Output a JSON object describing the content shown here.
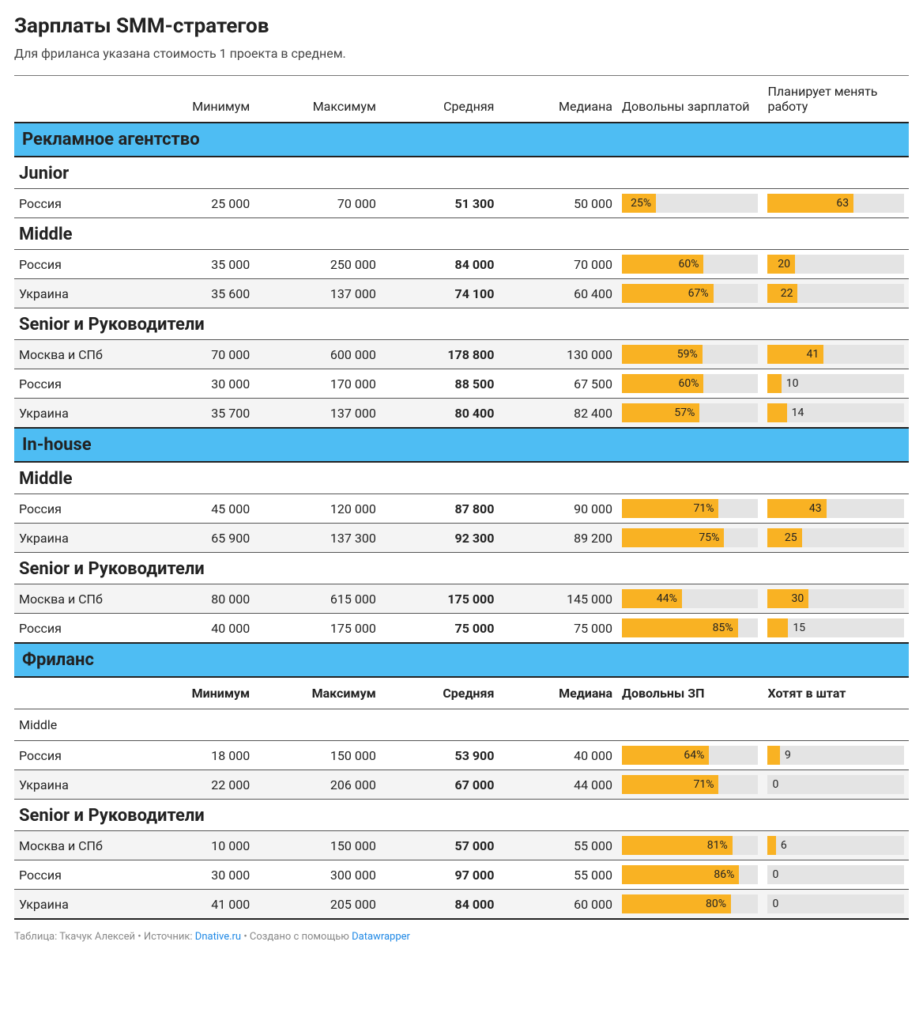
{
  "title": "Зарплаты SMM-стратегов",
  "subtitle": "Для фриланса указана стоимость 1 проекта в среднем.",
  "colors": {
    "section_bg": "#4ebdf3",
    "bar_fill": "#f9b223",
    "bar_bg": "#e4e4e4",
    "alt_row": "#f4f4f4"
  },
  "headers": {
    "region": "",
    "min": "Минимум",
    "max": "Максимум",
    "avg": "Средняя",
    "median": "Медиана",
    "satisfied": "Довольны зарплатой",
    "change": "Планирует менять работу"
  },
  "freelance_headers": {
    "min": "Минимум",
    "max": "Максимум",
    "avg": "Средняя",
    "median": "Медиана",
    "satisfied": "Довольны ЗП",
    "change": "Хотят в штат"
  },
  "sections": [
    {
      "key": "agency",
      "title": "Рекламное агентство",
      "levels": [
        {
          "key": "junior",
          "title": "Junior",
          "rows": [
            {
              "region": "Россия",
              "min": "25 000",
              "max": "70 000",
              "avg": "51 300",
              "median": "50 000",
              "sat_pct": 25,
              "sat_label": "25%",
              "chg_pct": 63,
              "chg_label": "63",
              "alt": false
            }
          ]
        },
        {
          "key": "middle",
          "title": "Middle",
          "rows": [
            {
              "region": "Россия",
              "min": "35 000",
              "max": "250 000",
              "avg": "84 000",
              "median": "70 000",
              "sat_pct": 60,
              "sat_label": "60%",
              "chg_pct": 20,
              "chg_label": "20",
              "alt": false
            },
            {
              "region": "Украина",
              "min": "35 600",
              "max": "137 000",
              "avg": "74 100",
              "median": "60 400",
              "sat_pct": 67,
              "sat_label": "67%",
              "chg_pct": 22,
              "chg_label": "22",
              "alt": true
            }
          ]
        },
        {
          "key": "senior",
          "title": "Senior и Руководители",
          "rows": [
            {
              "region": "Москва и СПб",
              "min": "70 000",
              "max": "600 000",
              "avg": "178 800",
              "median": "130 000",
              "sat_pct": 59,
              "sat_label": "59%",
              "chg_pct": 41,
              "chg_label": "41",
              "alt": true
            },
            {
              "region": "Россия",
              "min": "30 000",
              "max": "170 000",
              "avg": "88 500",
              "median": "67 500",
              "sat_pct": 60,
              "sat_label": "60%",
              "chg_pct": 10,
              "chg_label": "10",
              "alt": false
            },
            {
              "region": "Украина",
              "min": "35 700",
              "max": "137 000",
              "avg": "80 400",
              "median": "82 400",
              "sat_pct": 57,
              "sat_label": "57%",
              "chg_pct": 14,
              "chg_label": "14",
              "alt": true
            }
          ]
        }
      ]
    },
    {
      "key": "inhouse",
      "title": "In-house",
      "levels": [
        {
          "key": "middle",
          "title": "Middle",
          "rows": [
            {
              "region": "Россия",
              "min": "45 000",
              "max": "120 000",
              "avg": "87 800",
              "median": "90 000",
              "sat_pct": 71,
              "sat_label": "71%",
              "chg_pct": 43,
              "chg_label": "43",
              "alt": false
            },
            {
              "region": "Украина",
              "min": "65 900",
              "max": "137 300",
              "avg": "92 300",
              "median": "89 200",
              "sat_pct": 75,
              "sat_label": "75%",
              "chg_pct": 25,
              "chg_label": "25",
              "alt": true
            }
          ]
        },
        {
          "key": "senior",
          "title": "Senior и Руководители",
          "rows": [
            {
              "region": "Москва и СПб",
              "min": "80 000",
              "max": "615 000",
              "avg": "175 000",
              "median": "145 000",
              "sat_pct": 44,
              "sat_label": "44%",
              "chg_pct": 30,
              "chg_label": "30",
              "alt": true
            },
            {
              "region": "Россия",
              "min": "40 000",
              "max": "175 000",
              "avg": "75 000",
              "median": "75 000",
              "sat_pct": 85,
              "sat_label": "85%",
              "chg_pct": 15,
              "chg_label": "15",
              "alt": false
            }
          ]
        }
      ]
    },
    {
      "key": "freelance",
      "title": "Фриланс",
      "sub_headers": true,
      "levels": [
        {
          "key": "middle",
          "title": "Middle",
          "plain": true,
          "rows": [
            {
              "region": "Россия",
              "min": "18 000",
              "max": "150 000",
              "avg": "53 900",
              "median": "40 000",
              "sat_pct": 64,
              "sat_label": "64%",
              "chg_pct": 9,
              "chg_label": "9",
              "alt": false
            },
            {
              "region": "Украина",
              "min": "22 000",
              "max": "206 000",
              "avg": "67 000",
              "median": "44 000",
              "sat_pct": 71,
              "sat_label": "71%",
              "chg_pct": 0,
              "chg_label": "0",
              "alt": true
            }
          ]
        },
        {
          "key": "senior",
          "title": "Senior и Руководители",
          "rows": [
            {
              "region": "Москва и СПб",
              "min": "10 000",
              "max": "150 000",
              "avg": "57 000",
              "median": "55 000",
              "sat_pct": 81,
              "sat_label": "81%",
              "chg_pct": 6,
              "chg_label": "6",
              "alt": true
            },
            {
              "region": "Россия",
              "min": "30 000",
              "max": "300 000",
              "avg": "97 000",
              "median": "55 000",
              "sat_pct": 86,
              "sat_label": "86%",
              "chg_pct": 0,
              "chg_label": "0",
              "alt": false
            },
            {
              "region": "Украина",
              "min": "41 000",
              "max": "205 000",
              "avg": "84 000",
              "median": "60 000",
              "sat_pct": 80,
              "sat_label": "80%",
              "chg_pct": 0,
              "chg_label": "0",
              "alt": true
            }
          ]
        }
      ]
    }
  ],
  "footer": {
    "prefix": "Таблица: Ткачук Алексей • Источник: ",
    "source_text": "Dnative.ru",
    "middle": " • Создано с помощью ",
    "tool_text": "Datawrapper"
  }
}
